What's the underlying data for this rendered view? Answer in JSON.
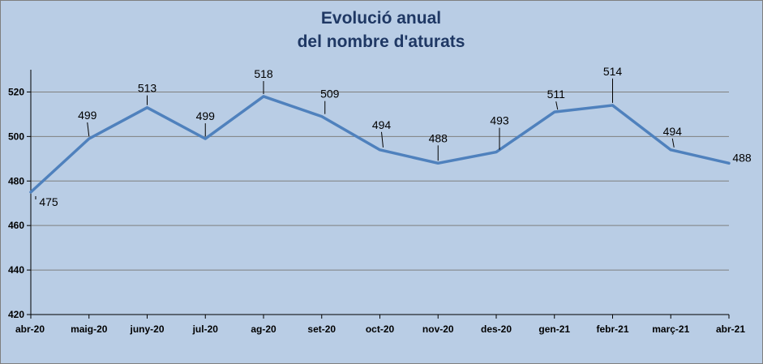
{
  "chart_data": {
    "type": "line",
    "title_lines": [
      "Evolució anual",
      "del nombre d'aturats"
    ],
    "categories": [
      "abr-20",
      "maig-20",
      "juny-20",
      "jul-20",
      "ag-20",
      "set-20",
      "oct-20",
      "nov-20",
      "des-20",
      "gen-21",
      "febr-21",
      "març-21",
      "abr-21"
    ],
    "series": [
      {
        "values": [
          475,
          499,
          513,
          499,
          518,
          509,
          494,
          488,
          493,
          511,
          514,
          494,
          488
        ]
      }
    ],
    "value_labels": [
      "475",
      "499",
      "513",
      "499",
      "518",
      "509",
      "494",
      "488",
      "493",
      "511",
      "514",
      "494",
      "488"
    ],
    "ylim": [
      420,
      530
    ],
    "yticks": [
      420,
      440,
      460,
      480,
      500,
      520
    ],
    "ytick_labels": [
      "420",
      "440",
      "460",
      "480",
      "500",
      "520"
    ],
    "grid": true,
    "legend": "none",
    "colors": {
      "background": "#b9cde5",
      "line": "#4f81bd",
      "gridline": "#7f7f7f",
      "title": "#1f3864"
    }
  }
}
